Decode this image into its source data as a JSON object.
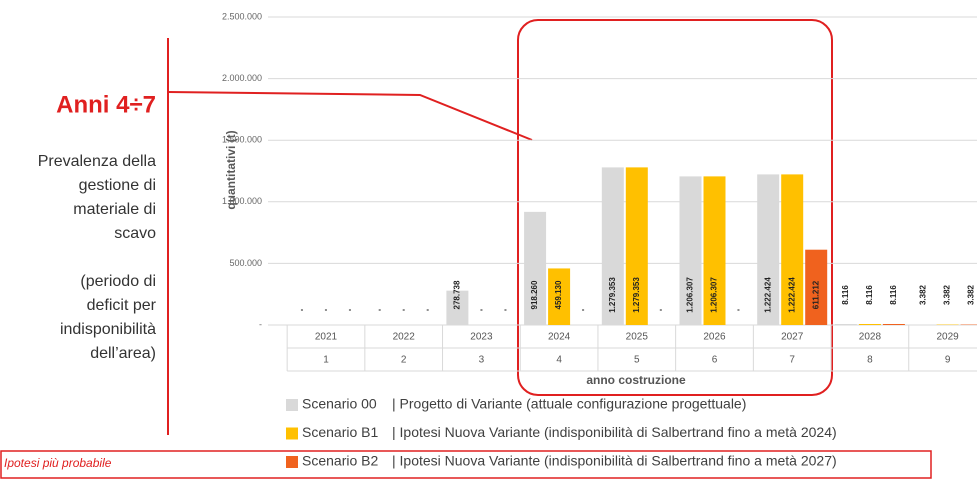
{
  "chart_data": {
    "type": "bar",
    "y_label": "quantitativi (t)",
    "x_label": "anno costruzione",
    "categories": [
      "2021",
      "2022",
      "2023",
      "2024",
      "2025",
      "2026",
      "2027",
      "2028",
      "2029"
    ],
    "sub_categories": [
      "1",
      "2",
      "3",
      "4",
      "5",
      "6",
      "7",
      "8",
      "9"
    ],
    "ylim": [
      0,
      2500000
    ],
    "yticks": [
      {
        "value": 0,
        "label": "-"
      },
      {
        "value": 500000,
        "label": "500.000"
      },
      {
        "value": 1000000,
        "label": "1.000.000"
      },
      {
        "value": 1500000,
        "label": "1.500.000"
      },
      {
        "value": 2000000,
        "label": "2.000.000"
      },
      {
        "value": 2500000,
        "label": "2.500.000"
      }
    ],
    "grid": true,
    "series": [
      {
        "name": "Scenario 00",
        "description": "| Progetto di Variante (attuale configurazione progettuale)",
        "color": "#d9d9d9",
        "values": [
          0,
          0,
          278738,
          918260,
          1279353,
          1206307,
          1222424,
          8116,
          3382
        ],
        "value_labels": [
          "-",
          "-",
          "278.738",
          "918.260",
          "1.279.353",
          "1.206.307",
          "1.222.424",
          "8.116",
          "3.382"
        ]
      },
      {
        "name": "Scenario B1",
        "description": "| Ipotesi Nuova Variante (indisponibilità di Salbertrand fino a metà 2024)",
        "color": "#ffc000",
        "values": [
          0,
          0,
          0,
          459130,
          1279353,
          1206307,
          1222424,
          8116,
          3382
        ],
        "value_labels": [
          "-",
          "-",
          "-",
          "459.130",
          "1.279.353",
          "1.206.307",
          "1.222.424",
          "8.116",
          "3.382"
        ]
      },
      {
        "name": "Scenario B2",
        "description": "| Ipotesi Nuova Variante (indisponibilità di Salbertrand fino a metà 2027)",
        "color": "#f0621e",
        "values": [
          0,
          0,
          0,
          0,
          0,
          0,
          611212,
          8116,
          3382
        ],
        "value_labels": [
          "-",
          "-",
          "-",
          "-",
          "-",
          "-",
          "611.212",
          "8.116",
          "3.382"
        ]
      }
    ]
  },
  "annotation": {
    "title": "Anni 4÷7",
    "lines": [
      "Prevalenza della",
      "gestione di",
      "materiale di",
      "scavo",
      "",
      "(periodo di",
      "deficit per",
      "indisponibilità",
      "dell’area)"
    ],
    "note": "Ipotesi più probabile"
  }
}
